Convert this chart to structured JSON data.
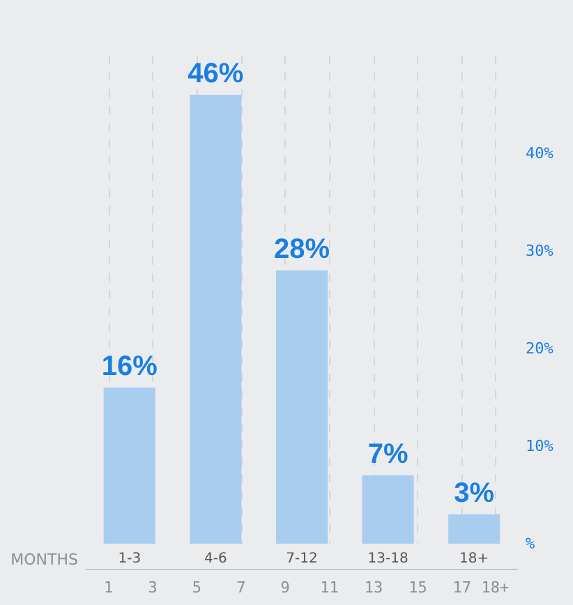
{
  "chart_data": {
    "type": "bar",
    "xlabel": "MONTHS",
    "categories": [
      "1-3",
      "4-6",
      "7-12",
      "13-18",
      "18+"
    ],
    "values": [
      16,
      46,
      28,
      7,
      3
    ],
    "value_labels": [
      "16%",
      "46%",
      "28%",
      "7%",
      "3%"
    ],
    "color": "#a9cdef",
    "ylim": [
      0,
      50
    ],
    "yticks": [
      {
        "value": 0,
        "label": "%"
      },
      {
        "value": 10,
        "label": "10%"
      },
      {
        "value": 20,
        "label": "20%"
      },
      {
        "value": 30,
        "label": "30%"
      },
      {
        "value": 40,
        "label": "40%"
      }
    ],
    "x2lim": [
      0,
      19.5
    ],
    "x2ticks": [
      1,
      3,
      5,
      7,
      9,
      11,
      13,
      15,
      17,
      {
        "value": 18.5,
        "label": "18+"
      }
    ],
    "grid": "x"
  }
}
